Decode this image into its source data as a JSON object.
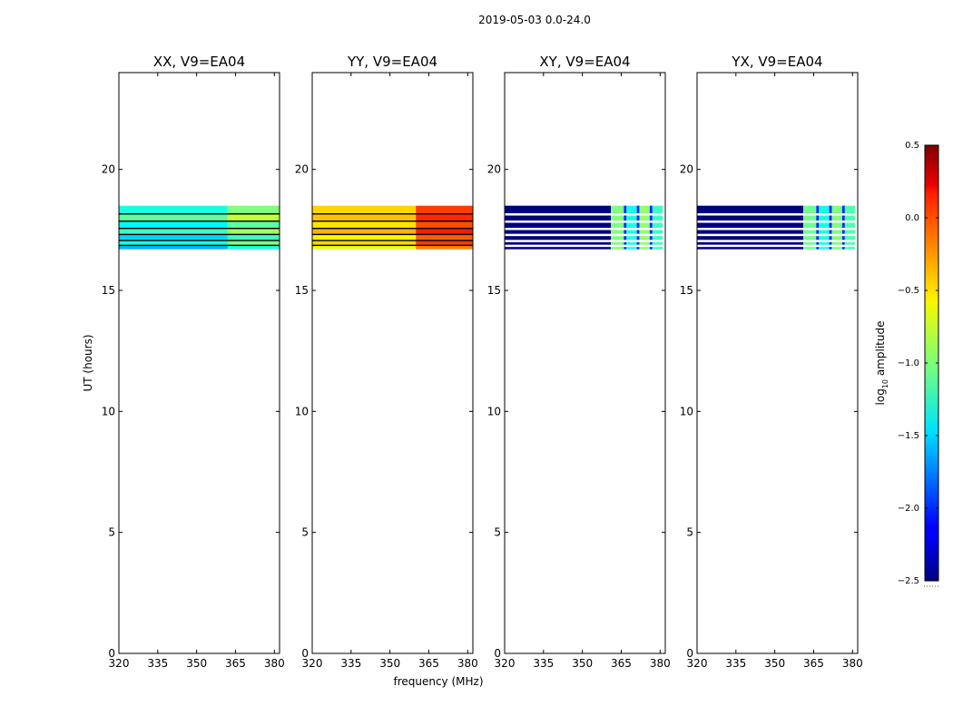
{
  "chart_data": {
    "type": "heatmap",
    "title": "2019-05-03 0.0-24.0",
    "xlabel": "frequency (MHz)",
    "ylabel": "UT (hours)",
    "xlim": [
      320,
      382
    ],
    "ylim": [
      0,
      24
    ],
    "xticks": [
      "320",
      "335",
      "350",
      "365",
      "380"
    ],
    "yticks": [
      "0",
      "5",
      "10",
      "15",
      "20"
    ],
    "colorbar": {
      "label": "log10 amplitude",
      "label_base": "log",
      "label_sub": "10",
      "label_rest": " amplitude",
      "range": [
        -2.5,
        0.5
      ],
      "ticks": [
        "0.5",
        "0.0",
        "−0.5",
        "−1.0",
        "−1.5",
        "−2.0",
        "−2.5"
      ],
      "colormap": "jet"
    },
    "data_time_range_hours": [
      16.7,
      18.5
    ],
    "gap_rows_hours": [
      16.85,
      17.05,
      17.3,
      17.55,
      17.85,
      18.15
    ],
    "panels": [
      {
        "title": "XX, V9=EA04",
        "time_rows": [
          [
            16.7,
            16.85,
            -1.6
          ],
          [
            16.85,
            17.05,
            -1.3
          ],
          [
            17.05,
            17.3,
            -1.5
          ],
          [
            17.3,
            17.55,
            -1.2
          ],
          [
            17.55,
            17.85,
            -1.4
          ],
          [
            17.85,
            18.15,
            -1.1
          ],
          [
            18.15,
            18.5,
            -1.3
          ]
        ],
        "freq_bands": [
          [
            320,
            362,
            0.0
          ],
          [
            362,
            382,
            0.3
          ]
        ],
        "channel_gaps": []
      },
      {
        "title": "YY, V9=EA04",
        "time_rows": [
          [
            16.7,
            16.85,
            -0.7
          ],
          [
            16.85,
            17.05,
            -0.5
          ],
          [
            17.05,
            17.3,
            -0.6
          ],
          [
            17.3,
            17.55,
            -0.4
          ],
          [
            17.55,
            17.85,
            -0.55
          ],
          [
            17.85,
            18.15,
            -0.45
          ],
          [
            18.15,
            18.5,
            -0.5
          ]
        ],
        "freq_bands": [
          [
            320,
            360,
            0.0
          ],
          [
            360,
            382,
            0.45
          ]
        ],
        "channel_gaps": []
      },
      {
        "title": "XY, V9=EA04",
        "time_rows": [
          [
            16.7,
            16.85,
            -2.5
          ],
          [
            16.85,
            17.05,
            -2.5
          ],
          [
            17.05,
            17.3,
            -2.5
          ],
          [
            17.3,
            17.55,
            -2.5
          ],
          [
            17.55,
            17.85,
            -2.5
          ],
          [
            17.85,
            18.15,
            -2.5
          ],
          [
            18.15,
            18.5,
            -2.5
          ]
        ],
        "freq_bands": [
          [
            320,
            361,
            0.0
          ]
        ],
        "blocks": [
          [
            361,
            366,
            -1.0
          ],
          [
            367,
            371,
            -1.3
          ],
          [
            372,
            376,
            -0.95
          ],
          [
            377,
            381,
            -1.2
          ]
        ],
        "channel_gaps": [
          [
            366,
            367
          ],
          [
            371,
            372
          ],
          [
            376,
            377
          ]
        ]
      },
      {
        "title": "YX, V9=EA04",
        "time_rows": [
          [
            16.7,
            16.85,
            -2.5
          ],
          [
            16.85,
            17.05,
            -2.5
          ],
          [
            17.05,
            17.3,
            -2.5
          ],
          [
            17.3,
            17.55,
            -2.5
          ],
          [
            17.55,
            17.85,
            -2.5
          ],
          [
            17.85,
            18.15,
            -2.5
          ],
          [
            18.15,
            18.5,
            -2.5
          ]
        ],
        "freq_bands": [
          [
            320,
            361,
            0.0
          ]
        ],
        "blocks": [
          [
            361,
            366,
            -1.05
          ],
          [
            367,
            371,
            -1.3
          ],
          [
            372,
            376,
            -1.0
          ],
          [
            377,
            381,
            -1.15
          ]
        ],
        "channel_gaps": [
          [
            366,
            367
          ],
          [
            371,
            372
          ],
          [
            376,
            377
          ]
        ]
      }
    ]
  }
}
